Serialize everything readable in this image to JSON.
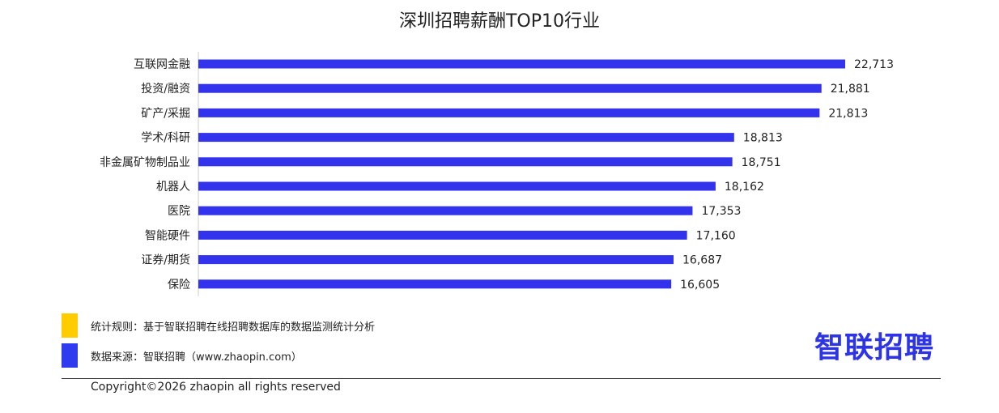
{
  "colors": {
    "bar": "#3333ee",
    "swatch_rule": "#ffcc00",
    "swatch_source": "#2e3bef",
    "logo": "#2d33e6"
  },
  "chart_data": {
    "type": "bar",
    "orientation": "horizontal",
    "title": "深圳招聘薪酬TOP10行业",
    "categories": [
      "互联网金融",
      "投资/融资",
      "矿产/采掘",
      "学术/科研",
      "非金属矿物制品业",
      "机器人",
      "医院",
      "智能硬件",
      "证券/期货",
      "保险"
    ],
    "values": [
      22713,
      21881,
      21813,
      18813,
      18751,
      18162,
      17353,
      17160,
      16687,
      16605
    ],
    "value_labels": [
      "22,713",
      "21,881",
      "21,813",
      "18,813",
      "18,751",
      "18,162",
      "17,353",
      "17,160",
      "16,687",
      "16,605"
    ],
    "xlabel": "",
    "ylabel": "",
    "xlim": [
      0,
      22713
    ],
    "grid": false,
    "legend": "none"
  },
  "notes": {
    "rule": "统计规则：基于智联招聘在线招聘数据库的数据监测统计分析",
    "source": "数据来源：智联招聘（www.zhaopin.com）"
  },
  "logo": {
    "text": "智联招聘"
  },
  "copyright": "Copyright©2026 zhaopin all rights reserved"
}
